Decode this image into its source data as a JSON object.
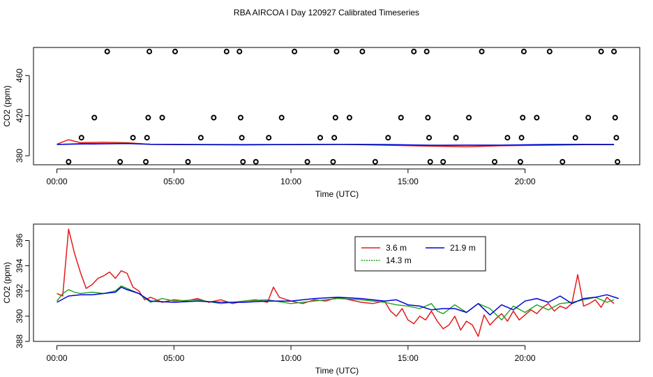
{
  "title": "RBA AIRCOA I  Day 120927  Calibrated Timeseries",
  "chart_data": [
    {
      "type": "scatter",
      "xlabel": "Time (UTC)",
      "ylabel": "CO2 (ppm)",
      "xlim": [
        -1.0,
        24.9
      ],
      "ylim": [
        371,
        488
      ],
      "x_ticks": [
        0,
        5,
        10,
        15,
        20
      ],
      "x_tick_labels": [
        "00:00",
        "05:00",
        "10:00",
        "15:00",
        "20:00"
      ],
      "y_ticks": [
        380,
        420,
        460
      ],
      "y_tick_labels": [
        "380",
        "420",
        "460"
      ],
      "reference_points": [
        {
          "x": 0.5,
          "y": 374
        },
        {
          "x": 1.05,
          "y": 398
        },
        {
          "x": 1.6,
          "y": 418
        },
        {
          "x": 2.15,
          "y": 484
        },
        {
          "x": 2.7,
          "y": 374
        },
        {
          "x": 3.25,
          "y": 398
        },
        {
          "x": 3.8,
          "y": 374
        },
        {
          "x": 3.85,
          "y": 398
        },
        {
          "x": 3.9,
          "y": 418
        },
        {
          "x": 3.95,
          "y": 484
        },
        {
          "x": 4.5,
          "y": 418
        },
        {
          "x": 5.05,
          "y": 484
        },
        {
          "x": 5.6,
          "y": 374
        },
        {
          "x": 6.15,
          "y": 398
        },
        {
          "x": 6.7,
          "y": 418
        },
        {
          "x": 7.25,
          "y": 484
        },
        {
          "x": 7.8,
          "y": 484
        },
        {
          "x": 7.85,
          "y": 418
        },
        {
          "x": 7.9,
          "y": 398
        },
        {
          "x": 7.95,
          "y": 374
        },
        {
          "x": 8.5,
          "y": 374
        },
        {
          "x": 9.05,
          "y": 398
        },
        {
          "x": 9.6,
          "y": 418
        },
        {
          "x": 10.15,
          "y": 484
        },
        {
          "x": 10.7,
          "y": 374
        },
        {
          "x": 11.25,
          "y": 398
        },
        {
          "x": 11.8,
          "y": 374
        },
        {
          "x": 11.85,
          "y": 398
        },
        {
          "x": 11.9,
          "y": 418
        },
        {
          "x": 11.95,
          "y": 484
        },
        {
          "x": 12.5,
          "y": 418
        },
        {
          "x": 13.05,
          "y": 484
        },
        {
          "x": 13.6,
          "y": 374
        },
        {
          "x": 14.15,
          "y": 398
        },
        {
          "x": 14.7,
          "y": 418
        },
        {
          "x": 15.25,
          "y": 484
        },
        {
          "x": 15.8,
          "y": 484
        },
        {
          "x": 15.85,
          "y": 418
        },
        {
          "x": 15.9,
          "y": 398
        },
        {
          "x": 15.95,
          "y": 374
        },
        {
          "x": 16.5,
          "y": 374
        },
        {
          "x": 17.05,
          "y": 398
        },
        {
          "x": 17.6,
          "y": 418
        },
        {
          "x": 18.15,
          "y": 484
        },
        {
          "x": 18.7,
          "y": 374
        },
        {
          "x": 19.25,
          "y": 398
        },
        {
          "x": 19.8,
          "y": 374
        },
        {
          "x": 19.85,
          "y": 398
        },
        {
          "x": 19.9,
          "y": 418
        },
        {
          "x": 19.95,
          "y": 484
        },
        {
          "x": 20.5,
          "y": 418
        },
        {
          "x": 21.05,
          "y": 484
        },
        {
          "x": 21.6,
          "y": 374
        },
        {
          "x": 22.15,
          "y": 398
        },
        {
          "x": 22.7,
          "y": 418
        },
        {
          "x": 23.25,
          "y": 484
        },
        {
          "x": 23.8,
          "y": 484
        },
        {
          "x": 23.85,
          "y": 418
        },
        {
          "x": 23.9,
          "y": 398
        },
        {
          "x": 23.95,
          "y": 374
        }
      ],
      "series": [
        {
          "color": "#e31a1c",
          "x": [
            0,
            0.5,
            1,
            2,
            3,
            4,
            6,
            8,
            10,
            12,
            14,
            16,
            17.5,
            19,
            21,
            22.5,
            23.8
          ],
          "values": [
            391.5,
            396,
            393,
            393.5,
            393,
            391.3,
            391,
            390.8,
            391.2,
            391.4,
            390.5,
            389.5,
            389,
            390,
            390.5,
            391,
            391
          ]
        },
        {
          "color": "#1aa31a",
          "x": [
            0,
            1,
            2,
            3,
            4,
            6,
            8,
            10,
            12,
            14,
            16,
            17.5,
            19,
            21,
            22.5,
            23.8
          ],
          "values": [
            391.2,
            392,
            392,
            392.3,
            391.4,
            391.1,
            391,
            391.1,
            391.3,
            391,
            390.2,
            390.5,
            390.3,
            391,
            391.2,
            391.2
          ]
        },
        {
          "color": "#0000dd",
          "x": [
            0,
            1,
            2,
            3,
            4,
            6,
            8,
            10,
            12,
            14,
            16,
            17.5,
            19,
            21,
            22.5,
            23.8
          ],
          "values": [
            391.3,
            391.7,
            391.9,
            392.2,
            391.5,
            391.2,
            391.1,
            391.2,
            391.4,
            391.2,
            390.5,
            390.6,
            390.6,
            391.3,
            391.4,
            391.3
          ]
        }
      ]
    },
    {
      "type": "line",
      "xlabel": "Time (UTC)",
      "ylabel": "CO2 (ppm)",
      "xlim": [
        -1.0,
        24.9
      ],
      "ylim": [
        388,
        397.3
      ],
      "x_ticks": [
        0,
        5,
        10,
        15,
        20
      ],
      "x_tick_labels": [
        "00:00",
        "05:00",
        "10:00",
        "15:00",
        "20:00"
      ],
      "y_ticks": [
        388,
        390,
        392,
        394,
        396
      ],
      "y_tick_labels": [
        "388",
        "390",
        "392",
        "394",
        "396"
      ],
      "legend": "top-center",
      "series": [
        {
          "name": "3.6 m",
          "color": "#e31a1c",
          "x": [
            0,
            0.25,
            0.5,
            0.75,
            1,
            1.25,
            1.5,
            1.75,
            2,
            2.25,
            2.5,
            2.75,
            3,
            3.25,
            3.5,
            3.75,
            4,
            4.5,
            5,
            5.5,
            6,
            6.5,
            7,
            7.5,
            8,
            8.5,
            9,
            9.25,
            9.5,
            10,
            10.5,
            11,
            11.5,
            12,
            12.5,
            13,
            13.5,
            14,
            14.25,
            14.5,
            14.75,
            15,
            15.25,
            15.5,
            15.75,
            16,
            16.25,
            16.5,
            16.75,
            17,
            17.25,
            17.5,
            17.75,
            18,
            18.25,
            18.5,
            18.75,
            19,
            19.25,
            19.5,
            19.75,
            20,
            20.25,
            20.5,
            20.75,
            21,
            21.25,
            21.5,
            21.75,
            22,
            22.25,
            22.5,
            22.75,
            23,
            23.25,
            23.5,
            23.8
          ],
          "values": [
            391.8,
            391.6,
            396.9,
            395.0,
            393.5,
            392.2,
            392.5,
            393.0,
            393.2,
            393.5,
            393.0,
            393.6,
            393.4,
            392.3,
            392.0,
            391.3,
            391.5,
            391.1,
            391.3,
            391.2,
            391.4,
            391.1,
            391.3,
            391.0,
            391.2,
            391.3,
            391.1,
            392.3,
            391.5,
            391.2,
            391.0,
            391.3,
            391.2,
            391.5,
            391.3,
            391.1,
            391.0,
            391.2,
            390.4,
            390.0,
            390.6,
            389.7,
            389.4,
            390.0,
            389.7,
            390.4,
            389.6,
            389.0,
            389.3,
            390.0,
            388.9,
            389.6,
            389.3,
            388.4,
            390.1,
            389.3,
            389.8,
            390.2,
            389.6,
            390.4,
            389.7,
            390.1,
            390.5,
            390.2,
            390.7,
            391.0,
            390.4,
            390.8,
            390.6,
            391.0,
            393.3,
            390.8,
            391.0,
            391.3,
            390.7,
            391.5,
            391.0
          ]
        },
        {
          "name": "14.3 m",
          "color": "#1aa31a",
          "x": [
            0,
            0.25,
            0.5,
            0.75,
            1,
            1.5,
            2,
            2.5,
            2.75,
            3,
            3.5,
            4,
            4.5,
            5,
            6,
            7,
            8,
            9,
            10,
            11,
            12,
            13,
            14,
            14.5,
            15,
            15.5,
            16,
            16.25,
            16.5,
            17,
            17.5,
            18,
            18.5,
            19,
            19.5,
            20,
            20.5,
            21,
            21.5,
            22,
            22.5,
            23,
            23.5,
            23.8
          ],
          "values": [
            391.2,
            391.8,
            392.1,
            391.9,
            391.8,
            391.9,
            391.8,
            392.0,
            392.4,
            392.2,
            391.8,
            391.1,
            391.4,
            391.2,
            391.3,
            391.0,
            391.2,
            391.3,
            391.0,
            391.2,
            391.4,
            391.3,
            391.1,
            390.9,
            390.8,
            390.6,
            391.0,
            390.4,
            390.2,
            390.9,
            390.3,
            391.0,
            390.6,
            389.7,
            390.8,
            390.3,
            390.9,
            390.5,
            391.0,
            391.1,
            391.3,
            391.5,
            391.1,
            391.3
          ]
        },
        {
          "name": "21.9 m",
          "color": "#0000dd",
          "x": [
            0,
            0.5,
            1,
            1.5,
            2,
            2.5,
            2.75,
            3,
            3.5,
            4,
            5,
            6,
            7,
            8,
            9,
            10,
            11,
            12,
            13,
            14,
            14.5,
            15,
            15.5,
            16,
            16.5,
            17,
            17.5,
            18,
            18.5,
            19,
            19.5,
            20,
            20.5,
            21,
            21.5,
            22,
            22.5,
            23,
            23.5,
            24
          ],
          "values": [
            391.1,
            391.6,
            391.7,
            391.7,
            391.8,
            391.9,
            392.3,
            392.1,
            391.8,
            391.2,
            391.1,
            391.2,
            391.1,
            391.1,
            391.2,
            391.2,
            391.4,
            391.5,
            391.4,
            391.2,
            391.3,
            390.9,
            390.8,
            390.5,
            390.6,
            390.6,
            390.3,
            391.0,
            390.1,
            390.9,
            390.5,
            391.2,
            391.4,
            391.1,
            391.6,
            391.0,
            391.4,
            391.5,
            391.7,
            391.4
          ]
        }
      ]
    }
  ]
}
